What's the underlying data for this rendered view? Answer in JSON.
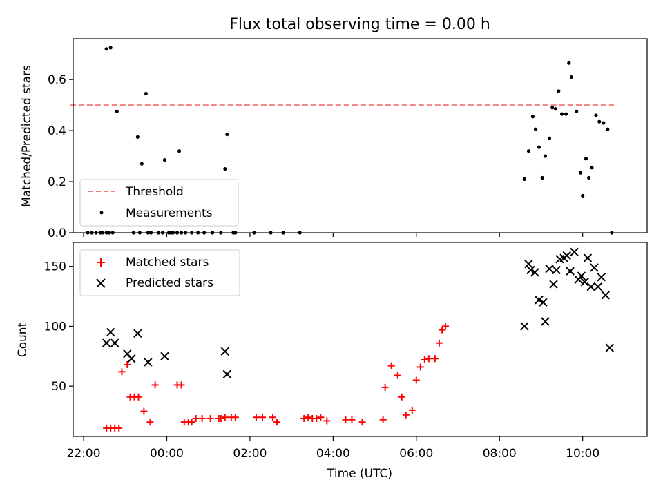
{
  "figure": {
    "title": "Flux total observing time = 0.00 h",
    "xlabel": "Time (UTC)",
    "xticks": [
      "22:00",
      "00:00",
      "02:00",
      "04:00",
      "06:00",
      "08:00",
      "10:00"
    ],
    "xlim_hours": [
      21.75,
      35.55
    ]
  },
  "chart_data": [
    {
      "type": "scatter",
      "panel": "top",
      "ylabel": "Matched/Predicted stars",
      "ylim": [
        0,
        0.76
      ],
      "yticks": [
        "0.0",
        "0.2",
        "0.4",
        "0.6"
      ],
      "legend": "lower-left",
      "threshold": {
        "name": "Threshold",
        "value": 0.5,
        "x_range": [
          "21:40",
          "08:00+1 10:45"
        ],
        "color": "#f08080"
      },
      "series": [
        {
          "name": "Measurements",
          "color": "#000000",
          "x": [
            22.1,
            22.2,
            22.3,
            22.4,
            22.45,
            22.55,
            22.62,
            22.7,
            23.2,
            23.35,
            23.55,
            23.62,
            23.8,
            23.9,
            24.05,
            24.1,
            24.15,
            24.25,
            24.35,
            24.45,
            24.6,
            24.75,
            24.9,
            25.1,
            25.3,
            25.6,
            25.65,
            26.1,
            26.5,
            26.8,
            27.2,
            22.55,
            22.65,
            22.8,
            23.3,
            23.4,
            23.5,
            23.95,
            24.3,
            25.4,
            25.45,
            32.6,
            32.7,
            32.8,
            32.87,
            32.95,
            33.03,
            33.1,
            33.2,
            33.27,
            33.35,
            33.42,
            33.5,
            33.6,
            33.67,
            33.73,
            33.85,
            33.95,
            34.0,
            34.08,
            34.15,
            34.22,
            34.32,
            34.4,
            34.5,
            34.6,
            34.7
          ],
          "y": [
            0,
            0,
            0,
            0,
            0,
            0,
            0,
            0,
            0,
            0,
            0,
            0,
            0,
            0,
            0,
            0,
            0,
            0,
            0,
            0,
            0,
            0,
            0,
            0,
            0,
            0,
            0,
            0,
            0,
            0,
            0,
            0.72,
            0.725,
            0.475,
            0.375,
            0.27,
            0.545,
            0.285,
            0.32,
            0.25,
            0.385,
            0.21,
            0.32,
            0.455,
            0.405,
            0.335,
            0.215,
            0.3,
            0.37,
            0.49,
            0.485,
            0.555,
            0.465,
            0.465,
            0.665,
            0.61,
            0.475,
            0.235,
            0.145,
            0.29,
            0.215,
            0.255,
            0.46,
            0.435,
            0.43,
            0.405,
            0.0
          ]
        }
      ]
    },
    {
      "type": "scatter",
      "panel": "bottom",
      "ylabel": "Count",
      "ylim": [
        8,
        170
      ],
      "yticks": [
        "50",
        "100",
        "150"
      ],
      "legend": "upper-left",
      "series": [
        {
          "name": "Matched stars",
          "marker": "+",
          "color": "#ff0000",
          "x": [
            22.55,
            22.65,
            22.75,
            22.85,
            22.92,
            23.05,
            23.12,
            23.22,
            23.32,
            23.45,
            23.6,
            23.72,
            24.25,
            24.35,
            24.42,
            24.52,
            24.6,
            24.7,
            24.85,
            25.05,
            25.25,
            25.3,
            25.4,
            25.55,
            25.65,
            26.15,
            26.3,
            26.55,
            26.65,
            27.3,
            27.4,
            27.5,
            27.6,
            27.7,
            27.85,
            28.3,
            28.45,
            28.7,
            29.2,
            29.25,
            29.4,
            29.55,
            29.65,
            29.75,
            29.9,
            30.0,
            30.1,
            30.2,
            30.3,
            30.45,
            30.55,
            30.62,
            30.7
          ],
          "y": [
            15,
            15,
            15,
            15,
            62,
            68,
            41,
            41,
            41,
            29,
            20,
            51,
            51,
            51,
            20,
            20,
            20,
            23,
            23,
            23,
            23,
            23,
            24,
            24,
            24,
            24,
            24,
            24,
            20,
            23,
            24,
            23,
            23,
            24,
            21,
            22,
            22,
            20,
            22,
            49,
            67,
            59,
            41,
            26,
            30,
            55,
            66,
            72,
            73,
            73,
            86,
            97,
            100
          ],
          "note": "values read from chart"
        },
        {
          "name": "Predicted stars",
          "marker": "x",
          "color": "#000000",
          "x": [
            22.55,
            22.65,
            22.75,
            23.05,
            23.15,
            23.3,
            23.55,
            23.95,
            25.4,
            25.45,
            32.6,
            32.7,
            32.75,
            32.85,
            32.95,
            33.05,
            33.1,
            33.2,
            33.3,
            33.37,
            33.45,
            33.55,
            33.62,
            33.7,
            33.8,
            33.9,
            33.97,
            34.05,
            34.12,
            34.2,
            34.28,
            34.37,
            34.45,
            34.55,
            34.65
          ],
          "y": [
            86,
            95,
            86,
            77,
            73,
            94,
            70,
            75,
            79,
            60,
            100,
            152,
            147,
            145,
            122,
            120,
            104,
            148,
            135,
            147,
            156,
            157,
            159,
            146,
            162,
            139,
            142,
            137,
            157,
            133,
            149,
            133,
            141,
            126,
            82
          ]
        }
      ]
    }
  ]
}
